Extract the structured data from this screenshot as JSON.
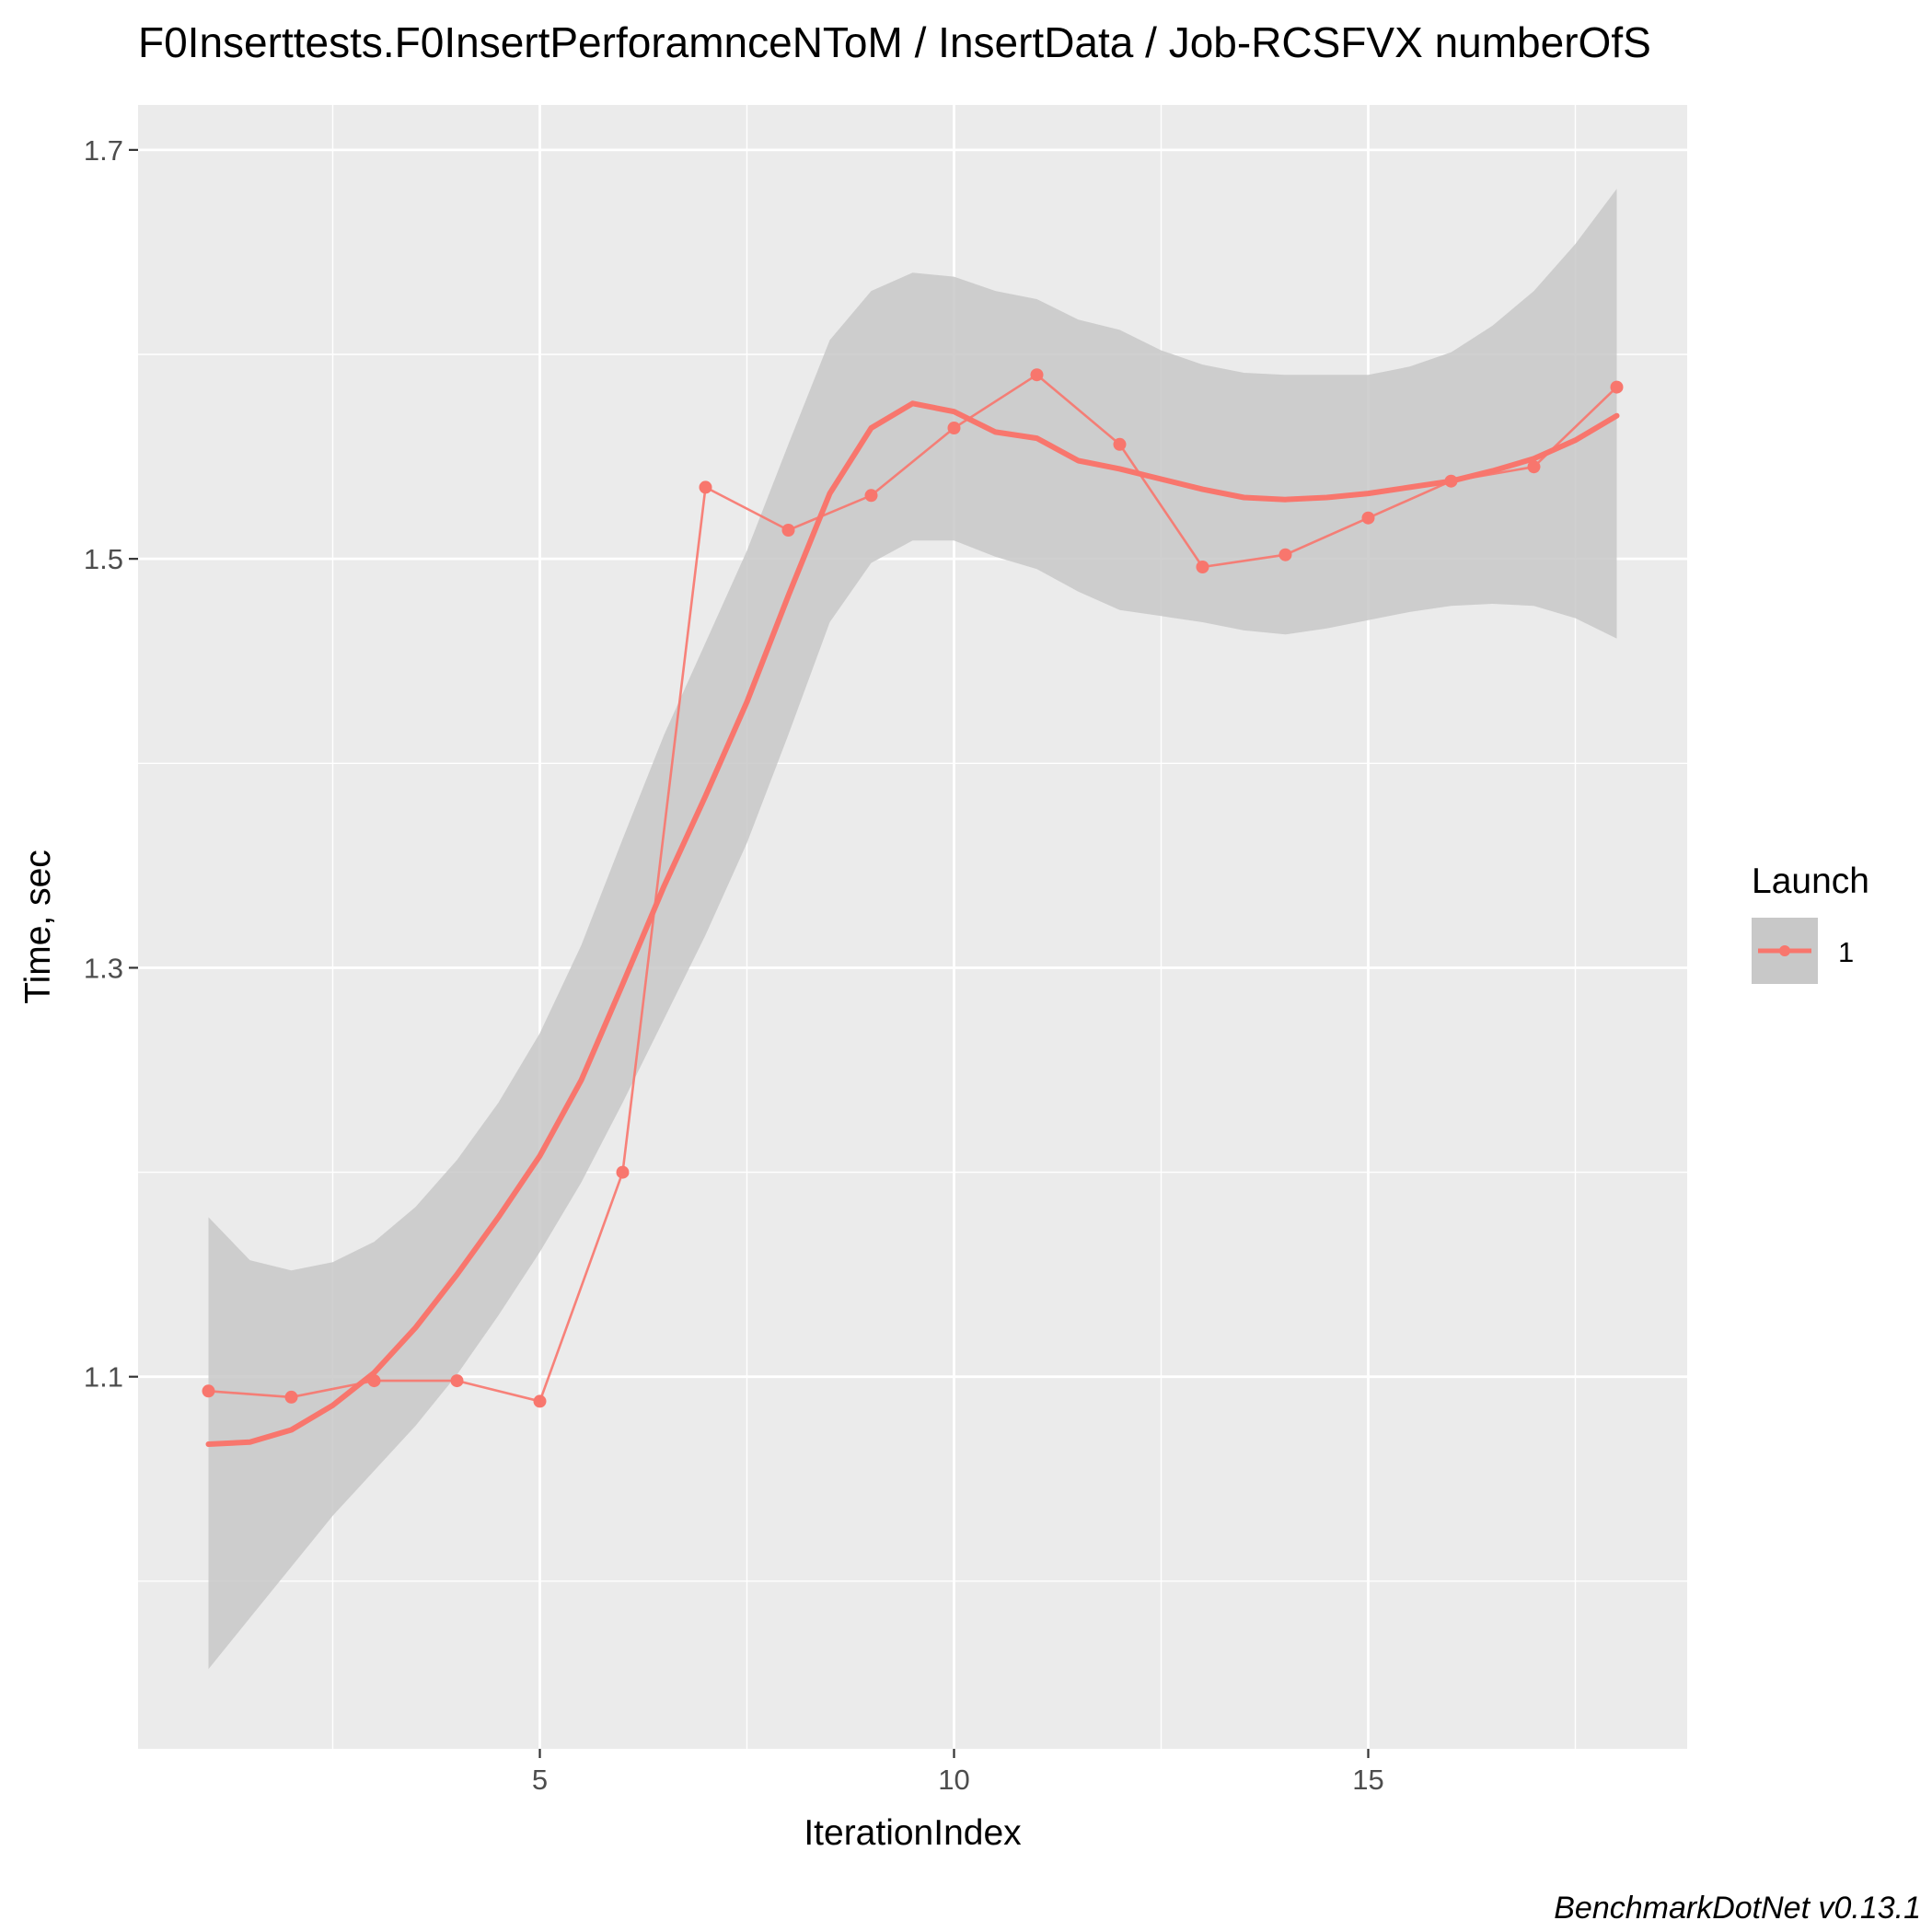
{
  "chart_data": {
    "type": "line",
    "title": "F0Inserttests.F0InsertPerforamnceNToM / InsertData / Job-RCSFVX numberOfS",
    "xlabel": "IterationIndex",
    "ylabel": "Time, sec",
    "caption": "BenchmarkDotNet v0.13.1",
    "xlim": [
      0.15,
      18.85
    ],
    "ylim": [
      0.918,
      1.722
    ],
    "x_ticks": [
      5,
      10,
      15
    ],
    "x_tick_labels": [
      "5",
      "10",
      "15"
    ],
    "y_ticks": [
      1.1,
      1.3,
      1.5,
      1.7
    ],
    "y_tick_labels": [
      "1.1",
      "1.3",
      "1.5",
      "1.7"
    ],
    "x_minor_gridlines": [
      2.5,
      7.5,
      12.5,
      17.5
    ],
    "y_minor_gridlines": [
      1.0,
      1.2,
      1.4,
      1.6
    ],
    "grid": true,
    "legend_position": "right",
    "legend": {
      "title": "Launch",
      "entries": [
        "1"
      ]
    },
    "colors": {
      "series": "#F8766D",
      "ribbon": "#C8C8C8",
      "panel": "#EBEBEB",
      "grid": "#FFFFFF",
      "legend_key": "#C8C8C8"
    },
    "series": [
      {
        "name": "1",
        "x": [
          1,
          2,
          3,
          4,
          5,
          6,
          7,
          8,
          9,
          10,
          11,
          12,
          13,
          14,
          15,
          16,
          17,
          18
        ],
        "values": [
          1.093,
          1.09,
          1.098,
          1.098,
          1.088,
          1.2,
          1.535,
          1.514,
          1.531,
          1.564,
          1.59,
          1.556,
          1.496,
          1.502,
          1.52,
          1.538,
          1.545,
          1.584
        ]
      }
    ],
    "smooth": {
      "x": [
        1,
        1.5,
        2,
        2.5,
        3,
        3.5,
        4,
        4.5,
        5,
        5.5,
        6,
        6.5,
        7,
        7.5,
        8,
        8.5,
        9,
        9.5,
        10,
        10.5,
        11,
        11.5,
        12,
        12.5,
        13,
        13.5,
        14,
        14.5,
        15,
        15.5,
        16,
        16.5,
        17,
        17.5,
        18
      ],
      "y": [
        1.067,
        1.068,
        1.074,
        1.086,
        1.102,
        1.124,
        1.15,
        1.178,
        1.208,
        1.245,
        1.292,
        1.34,
        1.384,
        1.43,
        1.482,
        1.532,
        1.564,
        1.576,
        1.572,
        1.562,
        1.559,
        1.548,
        1.544,
        1.539,
        1.534,
        1.53,
        1.529,
        1.53,
        1.532,
        1.535,
        1.538,
        1.543,
        1.549,
        1.558,
        1.57
      ],
      "lower": [
        0.957,
        0.982,
        1.007,
        1.032,
        1.054,
        1.076,
        1.101,
        1.13,
        1.161,
        1.195,
        1.234,
        1.275,
        1.316,
        1.361,
        1.414,
        1.469,
        1.498,
        1.509,
        1.509,
        1.501,
        1.495,
        1.484,
        1.475,
        1.472,
        1.469,
        1.465,
        1.463,
        1.466,
        1.47,
        1.474,
        1.477,
        1.478,
        1.477,
        1.471,
        1.461
      ],
      "upper": [
        1.178,
        1.157,
        1.152,
        1.156,
        1.166,
        1.183,
        1.206,
        1.234,
        1.268,
        1.311,
        1.363,
        1.414,
        1.459,
        1.504,
        1.556,
        1.607,
        1.631,
        1.64,
        1.638,
        1.631,
        1.627,
        1.617,
        1.612,
        1.602,
        1.595,
        1.591,
        1.59,
        1.59,
        1.59,
        1.594,
        1.601,
        1.614,
        1.631,
        1.654,
        1.681
      ]
    }
  }
}
